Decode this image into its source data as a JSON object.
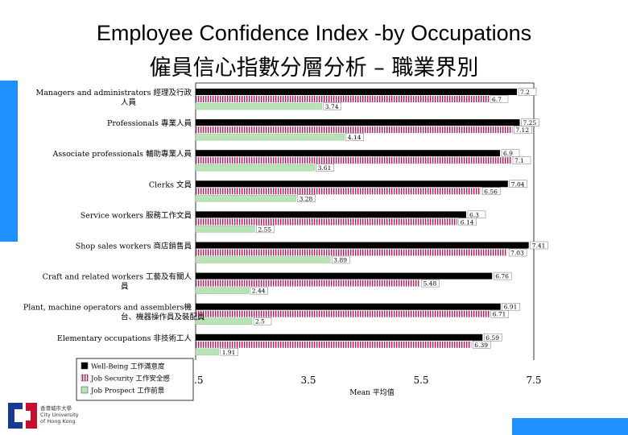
{
  "slide": {
    "title_en": "Employee Confidence Index -by Occupations",
    "title_zh": "僱員信心指數分層分析 – 職業界別",
    "accent_color": "#1e90ff"
  },
  "logo": {
    "line1": "香港城市大學",
    "line2": "City University",
    "line3": "of Hong Kong"
  },
  "chart_data": {
    "type": "bar",
    "orientation": "horizontal",
    "title": "",
    "xlabel": "Mean 平均值",
    "ylabel": "",
    "xlim": [
      1.5,
      7.5
    ],
    "xticks": [
      "1.5",
      "3.5",
      "5.5",
      "7.5"
    ],
    "grid": false,
    "legend_position": "bottom-left",
    "categories": [
      [
        "Managers and administrators 經理及行政",
        "人員"
      ],
      [
        "Professionals 專業人員"
      ],
      [
        "Associate professionals 輔助專業人員"
      ],
      [
        "Clerks 文員"
      ],
      [
        "Service workers 服務工作文員"
      ],
      [
        "Shop sales workers 商店銷售員"
      ],
      [
        "Craft and related workers 工藝及有關人",
        "員"
      ],
      [
        "Plant, machine operators and assemblers機",
        "台、機器操作員及裝配員"
      ],
      [
        "Elementary occupations 非技術工人"
      ]
    ],
    "series": [
      {
        "name": "Well-Being 工作滿意度",
        "color": "#000000",
        "pattern": "solid",
        "values": [
          7.2,
          7.25,
          6.9,
          7.04,
          6.3,
          7.41,
          6.76,
          6.91,
          6.59
        ],
        "labels": [
          "7.2",
          "7.25",
          "6.9",
          "7.04",
          "6.3",
          "7.41",
          "6.76",
          "6.91",
          "6.59"
        ]
      },
      {
        "name": "Job Security 工作安全感",
        "color": "#c2185b",
        "pattern": "vstripe",
        "values": [
          6.7,
          7.12,
          7.1,
          6.56,
          6.14,
          7.03,
          5.48,
          6.71,
          6.39
        ],
        "labels": [
          "6.7",
          "7.12",
          "7.1",
          "6.56",
          "6.14",
          "7.03",
          "5.48",
          "6.71",
          "6.39"
        ]
      },
      {
        "name": "Job Prospect 工作前景",
        "color": "#b7e3b7",
        "pattern": "solid",
        "values": [
          3.74,
          4.14,
          3.61,
          3.28,
          2.55,
          3.89,
          2.44,
          2.5,
          1.91
        ],
        "labels": [
          "3.74",
          "4.14",
          "3.61",
          "3.28",
          "2.55",
          "3.89",
          "2.44",
          "2.5",
          "1.91"
        ]
      }
    ]
  }
}
